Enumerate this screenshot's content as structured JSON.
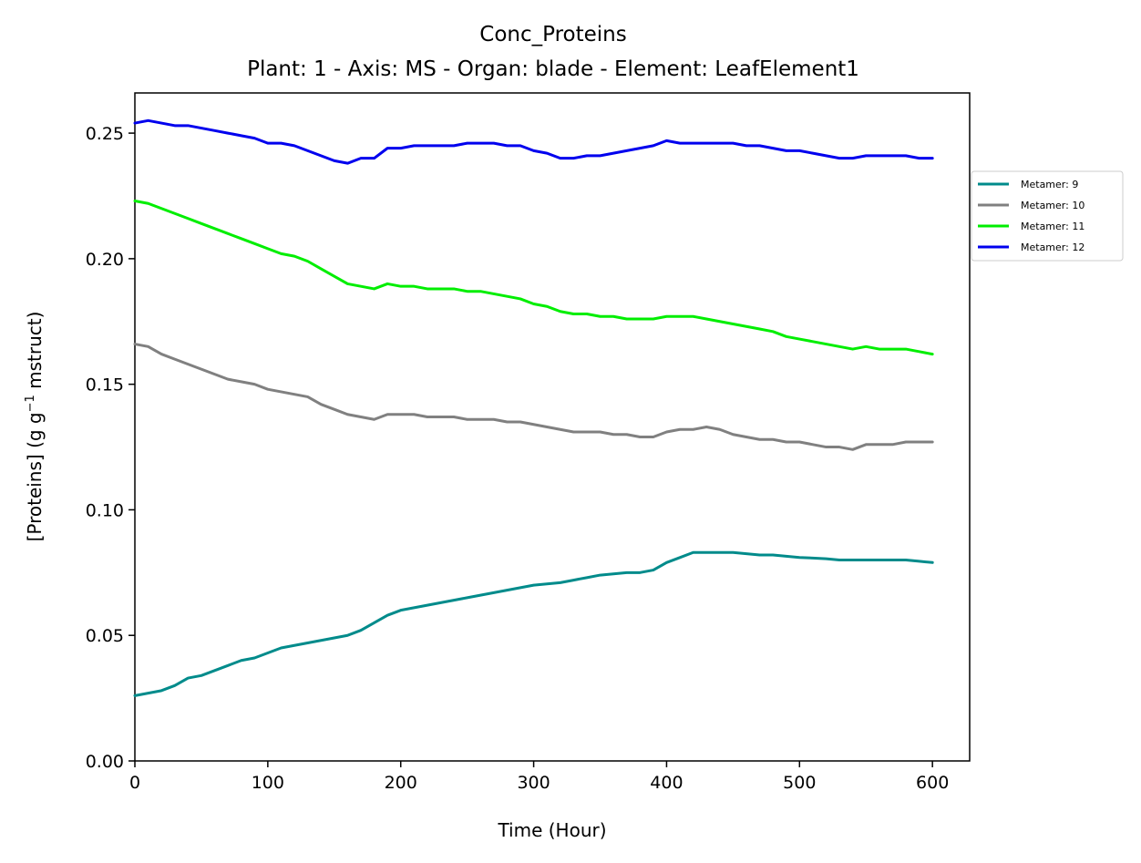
{
  "chart_data": {
    "type": "line",
    "title": "Conc_Proteins",
    "subtitle": "Plant: 1 - Axis: MS - Organ: blade - Element: LeafElement1",
    "xlabel": "Time (Hour)",
    "ylabel_prefix": "[Proteins] (g g",
    "ylabel_superscript": "−1",
    "ylabel_suffix": " mstruct)",
    "xlim": [
      0,
      628
    ],
    "ylim": [
      0,
      0.266
    ],
    "xticks": [
      0,
      100,
      200,
      300,
      400,
      500,
      600
    ],
    "xtick_labels": [
      "0",
      "100",
      "200",
      "300",
      "400",
      "500",
      "600"
    ],
    "yticks": [
      0,
      0.05,
      0.1,
      0.15,
      0.2,
      0.25
    ],
    "ytick_labels": [
      "0.00",
      "0.05",
      "0.10",
      "0.15",
      "0.20",
      "0.25"
    ],
    "grid": false,
    "legend_position": "right, outside",
    "series": [
      {
        "name": "Metamer: 9",
        "color": "#008B8B",
        "points": [
          [
            0,
            0.026
          ],
          [
            10,
            0.027
          ],
          [
            20,
            0.028
          ],
          [
            30,
            0.03
          ],
          [
            40,
            0.033
          ],
          [
            50,
            0.034
          ],
          [
            60,
            0.036
          ],
          [
            70,
            0.038
          ],
          [
            80,
            0.04
          ],
          [
            90,
            0.041
          ],
          [
            100,
            0.043
          ],
          [
            110,
            0.045
          ],
          [
            120,
            0.046
          ],
          [
            130,
            0.047
          ],
          [
            140,
            0.048
          ],
          [
            150,
            0.049
          ],
          [
            160,
            0.05
          ],
          [
            170,
            0.052
          ],
          [
            180,
            0.055
          ],
          [
            190,
            0.058
          ],
          [
            200,
            0.06
          ],
          [
            210,
            0.061
          ],
          [
            220,
            0.062
          ],
          [
            230,
            0.063
          ],
          [
            240,
            0.064
          ],
          [
            250,
            0.065
          ],
          [
            260,
            0.066
          ],
          [
            270,
            0.067
          ],
          [
            280,
            0.068
          ],
          [
            290,
            0.069
          ],
          [
            300,
            0.07
          ],
          [
            310,
            0.0705
          ],
          [
            320,
            0.071
          ],
          [
            330,
            0.072
          ],
          [
            340,
            0.073
          ],
          [
            350,
            0.074
          ],
          [
            360,
            0.0745
          ],
          [
            370,
            0.075
          ],
          [
            380,
            0.075
          ],
          [
            390,
            0.076
          ],
          [
            400,
            0.079
          ],
          [
            410,
            0.081
          ],
          [
            420,
            0.083
          ],
          [
            430,
            0.083
          ],
          [
            440,
            0.083
          ],
          [
            450,
            0.083
          ],
          [
            460,
            0.0825
          ],
          [
            470,
            0.082
          ],
          [
            480,
            0.082
          ],
          [
            490,
            0.0815
          ],
          [
            500,
            0.081
          ],
          [
            510,
            0.0808
          ],
          [
            520,
            0.0805
          ],
          [
            530,
            0.08
          ],
          [
            540,
            0.08
          ],
          [
            550,
            0.08
          ],
          [
            560,
            0.08
          ],
          [
            570,
            0.08
          ],
          [
            580,
            0.08
          ],
          [
            590,
            0.0795
          ],
          [
            600,
            0.079
          ]
        ]
      },
      {
        "name": "Metamer: 10",
        "color": "#808080",
        "points": [
          [
            0,
            0.166
          ],
          [
            10,
            0.165
          ],
          [
            20,
            0.162
          ],
          [
            30,
            0.16
          ],
          [
            40,
            0.158
          ],
          [
            50,
            0.156
          ],
          [
            60,
            0.154
          ],
          [
            70,
            0.152
          ],
          [
            80,
            0.151
          ],
          [
            90,
            0.15
          ],
          [
            100,
            0.148
          ],
          [
            110,
            0.147
          ],
          [
            120,
            0.146
          ],
          [
            130,
            0.145
          ],
          [
            140,
            0.142
          ],
          [
            150,
            0.14
          ],
          [
            160,
            0.138
          ],
          [
            170,
            0.137
          ],
          [
            180,
            0.136
          ],
          [
            190,
            0.138
          ],
          [
            200,
            0.138
          ],
          [
            210,
            0.138
          ],
          [
            220,
            0.137
          ],
          [
            230,
            0.137
          ],
          [
            240,
            0.137
          ],
          [
            250,
            0.136
          ],
          [
            260,
            0.136
          ],
          [
            270,
            0.136
          ],
          [
            280,
            0.135
          ],
          [
            290,
            0.135
          ],
          [
            300,
            0.134
          ],
          [
            310,
            0.133
          ],
          [
            320,
            0.132
          ],
          [
            330,
            0.131
          ],
          [
            340,
            0.131
          ],
          [
            350,
            0.131
          ],
          [
            360,
            0.13
          ],
          [
            370,
            0.13
          ],
          [
            380,
            0.129
          ],
          [
            390,
            0.129
          ],
          [
            400,
            0.131
          ],
          [
            410,
            0.132
          ],
          [
            420,
            0.132
          ],
          [
            430,
            0.133
          ],
          [
            440,
            0.132
          ],
          [
            450,
            0.13
          ],
          [
            460,
            0.129
          ],
          [
            470,
            0.128
          ],
          [
            480,
            0.128
          ],
          [
            490,
            0.127
          ],
          [
            500,
            0.127
          ],
          [
            510,
            0.126
          ],
          [
            520,
            0.125
          ],
          [
            530,
            0.125
          ],
          [
            540,
            0.124
          ],
          [
            550,
            0.126
          ],
          [
            560,
            0.126
          ],
          [
            570,
            0.126
          ],
          [
            580,
            0.127
          ],
          [
            590,
            0.127
          ],
          [
            600,
            0.127
          ]
        ]
      },
      {
        "name": "Metamer: 11",
        "color": "#00EE00",
        "points": [
          [
            0,
            0.223
          ],
          [
            10,
            0.222
          ],
          [
            20,
            0.22
          ],
          [
            30,
            0.218
          ],
          [
            40,
            0.216
          ],
          [
            50,
            0.214
          ],
          [
            60,
            0.212
          ],
          [
            70,
            0.21
          ],
          [
            80,
            0.208
          ],
          [
            90,
            0.206
          ],
          [
            100,
            0.204
          ],
          [
            110,
            0.202
          ],
          [
            120,
            0.201
          ],
          [
            130,
            0.199
          ],
          [
            140,
            0.196
          ],
          [
            150,
            0.193
          ],
          [
            160,
            0.19
          ],
          [
            170,
            0.189
          ],
          [
            180,
            0.188
          ],
          [
            190,
            0.19
          ],
          [
            200,
            0.189
          ],
          [
            210,
            0.189
          ],
          [
            220,
            0.188
          ],
          [
            230,
            0.188
          ],
          [
            240,
            0.188
          ],
          [
            250,
            0.187
          ],
          [
            260,
            0.187
          ],
          [
            270,
            0.186
          ],
          [
            280,
            0.185
          ],
          [
            290,
            0.184
          ],
          [
            300,
            0.182
          ],
          [
            310,
            0.181
          ],
          [
            320,
            0.179
          ],
          [
            330,
            0.178
          ],
          [
            340,
            0.178
          ],
          [
            350,
            0.177
          ],
          [
            360,
            0.177
          ],
          [
            370,
            0.176
          ],
          [
            380,
            0.176
          ],
          [
            390,
            0.176
          ],
          [
            400,
            0.177
          ],
          [
            410,
            0.177
          ],
          [
            420,
            0.177
          ],
          [
            430,
            0.176
          ],
          [
            440,
            0.175
          ],
          [
            450,
            0.174
          ],
          [
            460,
            0.173
          ],
          [
            470,
            0.172
          ],
          [
            480,
            0.171
          ],
          [
            490,
            0.169
          ],
          [
            500,
            0.168
          ],
          [
            510,
            0.167
          ],
          [
            520,
            0.166
          ],
          [
            530,
            0.165
          ],
          [
            540,
            0.164
          ],
          [
            550,
            0.165
          ],
          [
            560,
            0.164
          ],
          [
            570,
            0.164
          ],
          [
            580,
            0.164
          ],
          [
            590,
            0.163
          ],
          [
            600,
            0.162
          ]
        ]
      },
      {
        "name": "Metamer: 12",
        "color": "#0000EE",
        "points": [
          [
            0,
            0.254
          ],
          [
            10,
            0.255
          ],
          [
            20,
            0.254
          ],
          [
            30,
            0.253
          ],
          [
            40,
            0.253
          ],
          [
            50,
            0.252
          ],
          [
            60,
            0.251
          ],
          [
            70,
            0.25
          ],
          [
            80,
            0.249
          ],
          [
            90,
            0.248
          ],
          [
            100,
            0.246
          ],
          [
            110,
            0.246
          ],
          [
            120,
            0.245
          ],
          [
            130,
            0.243
          ],
          [
            140,
            0.241
          ],
          [
            150,
            0.239
          ],
          [
            160,
            0.238
          ],
          [
            170,
            0.24
          ],
          [
            180,
            0.24
          ],
          [
            190,
            0.244
          ],
          [
            200,
            0.244
          ],
          [
            210,
            0.245
          ],
          [
            220,
            0.245
          ],
          [
            230,
            0.245
          ],
          [
            240,
            0.245
          ],
          [
            250,
            0.246
          ],
          [
            260,
            0.246
          ],
          [
            270,
            0.246
          ],
          [
            280,
            0.245
          ],
          [
            290,
            0.245
          ],
          [
            300,
            0.243
          ],
          [
            310,
            0.242
          ],
          [
            320,
            0.24
          ],
          [
            330,
            0.24
          ],
          [
            340,
            0.241
          ],
          [
            350,
            0.241
          ],
          [
            360,
            0.242
          ],
          [
            370,
            0.243
          ],
          [
            380,
            0.244
          ],
          [
            390,
            0.245
          ],
          [
            400,
            0.247
          ],
          [
            410,
            0.246
          ],
          [
            420,
            0.246
          ],
          [
            430,
            0.246
          ],
          [
            440,
            0.246
          ],
          [
            450,
            0.246
          ],
          [
            460,
            0.245
          ],
          [
            470,
            0.245
          ],
          [
            480,
            0.244
          ],
          [
            490,
            0.243
          ],
          [
            500,
            0.243
          ],
          [
            510,
            0.242
          ],
          [
            520,
            0.241
          ],
          [
            530,
            0.24
          ],
          [
            540,
            0.24
          ],
          [
            550,
            0.241
          ],
          [
            560,
            0.241
          ],
          [
            570,
            0.241
          ],
          [
            580,
            0.241
          ],
          [
            590,
            0.24
          ],
          [
            600,
            0.24
          ]
        ]
      }
    ]
  }
}
